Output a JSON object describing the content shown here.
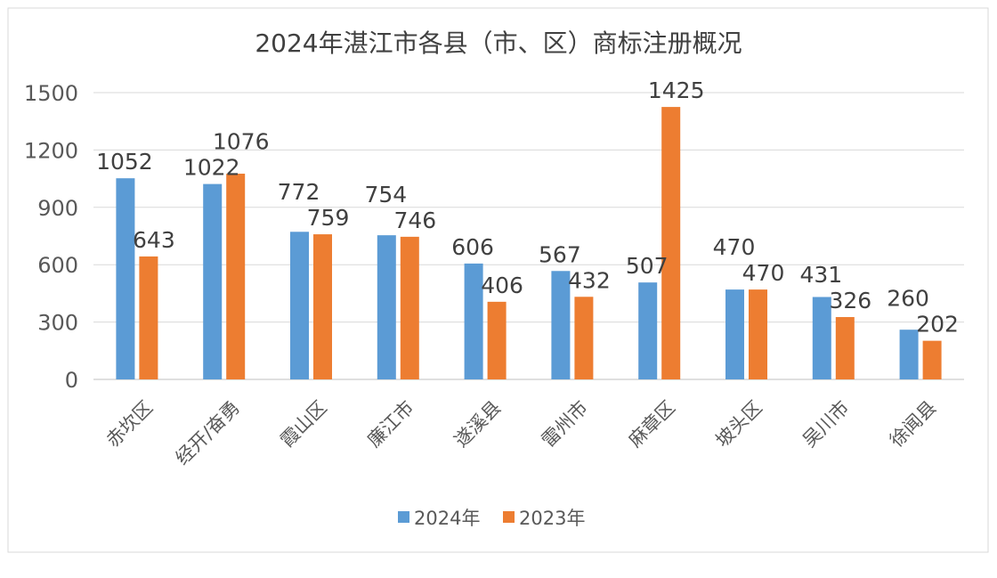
{
  "chart_data": {
    "type": "bar",
    "title": "2024年湛江市各县（市、区）商标注册概况",
    "categories": [
      "赤坎区",
      "经开/奋勇",
      "霞山区",
      "廉江市",
      "遂溪县",
      "雷州市",
      "麻章区",
      "坡头区",
      "吴川市",
      "徐闻县"
    ],
    "series": [
      {
        "name": "2024年",
        "color": "#5b9bd5",
        "values": [
          1052,
          1022,
          772,
          754,
          606,
          567,
          507,
          470,
          431,
          260
        ]
      },
      {
        "name": "2023年",
        "color": "#ed7d31",
        "values": [
          643,
          1076,
          759,
          746,
          406,
          432,
          1425,
          470,
          326,
          202
        ]
      }
    ],
    "ylim": [
      0,
      1500
    ],
    "yticks": [
      0,
      300,
      600,
      900,
      1200,
      1500
    ],
    "grid": true,
    "legend": "bottom",
    "data_labels": true
  }
}
